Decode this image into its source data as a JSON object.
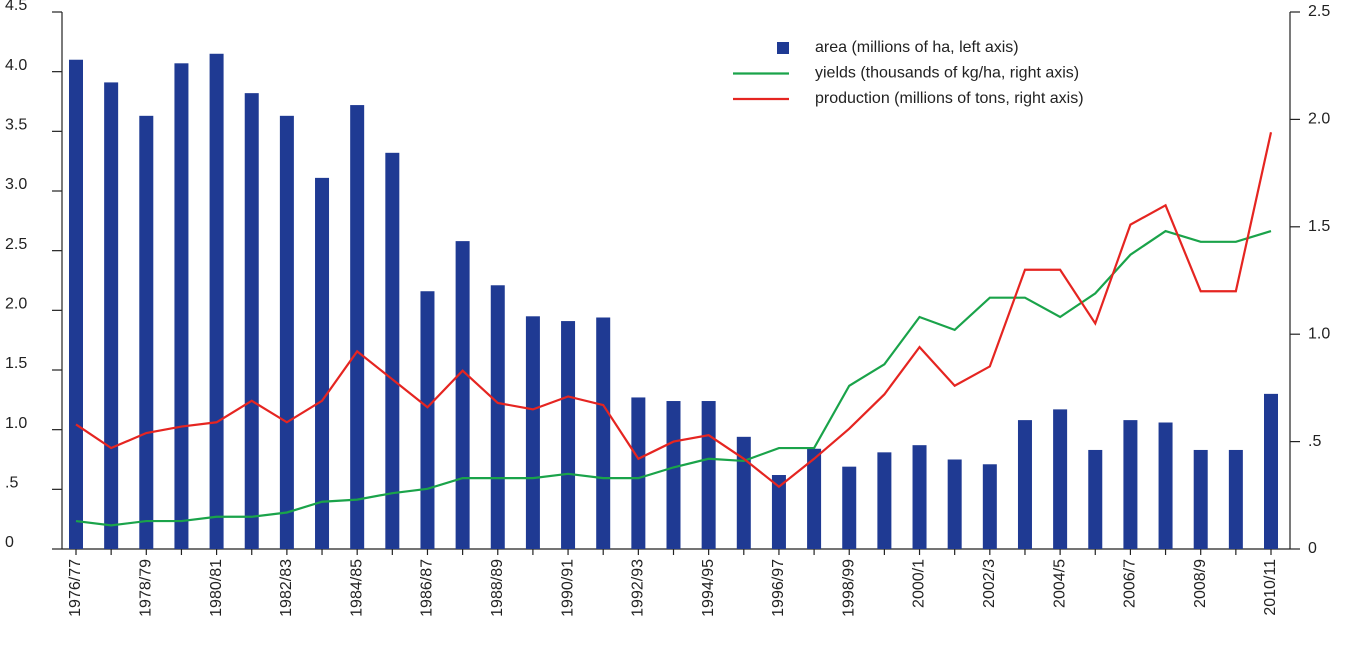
{
  "chart_data": {
    "type": "bar",
    "categories": [
      "1976/77",
      null,
      "1978/79",
      null,
      "1980/81",
      null,
      "1982/83",
      null,
      "1984/85",
      null,
      "1986/87",
      null,
      "1988/89",
      null,
      "1990/91",
      null,
      "1992/93",
      null,
      "1994/95",
      null,
      "1996/97",
      null,
      "1998/99",
      null,
      "2000/1",
      null,
      "2002/3",
      null,
      "2004/5",
      null,
      "2006/7",
      null,
      "2008/9",
      null,
      "2010/11"
    ],
    "series": [
      {
        "name": "area (millions of ha, left axis)",
        "type": "bar",
        "axis": "y",
        "color": "#1f3a93",
        "values": [
          4.1,
          3.91,
          3.63,
          4.07,
          4.15,
          3.82,
          3.63,
          3.11,
          3.72,
          3.32,
          2.16,
          2.58,
          2.21,
          1.95,
          1.91,
          1.94,
          1.27,
          1.24,
          1.24,
          0.94,
          0.62,
          0.84,
          0.69,
          0.81,
          0.87,
          0.75,
          0.71,
          1.08,
          1.17,
          0.83,
          1.08,
          1.06,
          0.83,
          0.83,
          1.3
        ]
      },
      {
        "name": "yields (thousands of kg/ha, right axis)",
        "type": "line",
        "axis": "y2",
        "color": "#1aa34a",
        "values": [
          0.13,
          0.11,
          0.13,
          0.13,
          0.15,
          0.15,
          0.17,
          0.22,
          0.23,
          0.26,
          0.28,
          0.33,
          0.33,
          0.33,
          0.35,
          0.33,
          0.33,
          0.38,
          0.42,
          0.41,
          0.47,
          0.47,
          0.76,
          0.86,
          1.08,
          1.02,
          1.17,
          1.17,
          1.08,
          1.19,
          1.37,
          1.48,
          1.43,
          1.43,
          1.48
        ]
      },
      {
        "name": "production (millions of tons, right axis)",
        "type": "line",
        "axis": "y2",
        "color": "#e52521",
        "values": [
          0.58,
          0.47,
          0.54,
          0.57,
          0.59,
          0.69,
          0.59,
          0.69,
          0.92,
          0.79,
          0.66,
          0.83,
          0.68,
          0.65,
          0.71,
          0.67,
          0.42,
          0.5,
          0.53,
          0.42,
          0.29,
          0.42,
          0.56,
          0.72,
          0.94,
          0.76,
          0.85,
          1.3,
          1.3,
          1.05,
          1.51,
          1.6,
          1.2,
          1.2,
          1.94
        ]
      }
    ],
    "ylim": [
      0,
      4.5
    ],
    "yticks": [
      0,
      {
        "value": 0.5,
        "label": ".5"
      },
      {
        "value": 1,
        "label": "1.0"
      },
      1.5,
      {
        "value": 2,
        "label": "2.0"
      },
      2.5,
      {
        "value": 3,
        "label": "3.0"
      },
      3.5,
      {
        "value": 4,
        "label": "4.0"
      },
      4.5
    ],
    "y2lim": [
      0,
      2.5
    ],
    "y2ticks": [
      0,
      {
        "value": 0.5,
        "label": ".5"
      },
      {
        "value": 1,
        "label": "1.0"
      },
      1.5,
      {
        "value": 2,
        "label": "2.0"
      },
      2.5
    ],
    "legend": "upper right"
  }
}
